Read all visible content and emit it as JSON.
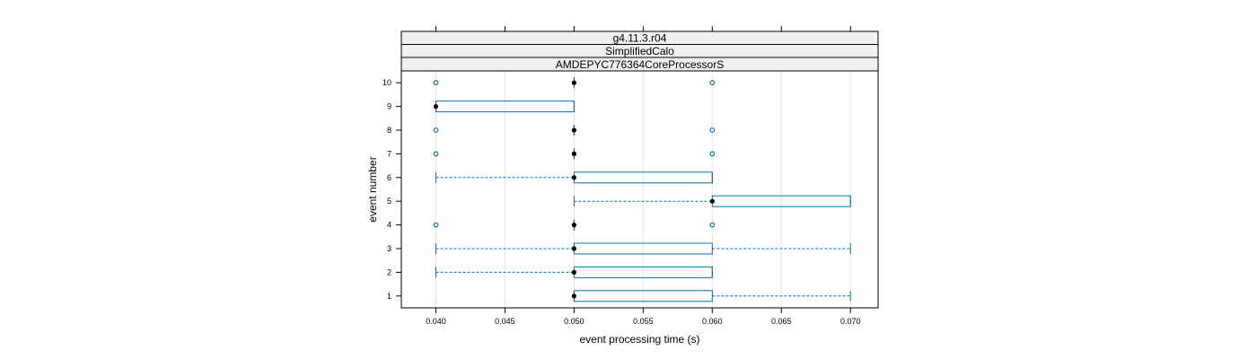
{
  "chart_data": {
    "type": "boxplot",
    "panel_strips": [
      "g4.11.3.r04",
      "SimplifiedCalo",
      "AMDEPYC776364CoreProcessorS"
    ],
    "xlabel": "event processing time (s)",
    "ylabel": "event number",
    "xlim": [
      0.0375,
      0.072
    ],
    "x_ticks": [
      0.04,
      0.045,
      0.05,
      0.055,
      0.06,
      0.065,
      0.07
    ],
    "x_tick_labels": [
      "0.040",
      "0.045",
      "0.050",
      "0.055",
      "0.060",
      "0.065",
      "0.070"
    ],
    "categories": [
      "1",
      "2",
      "3",
      "4",
      "5",
      "6",
      "7",
      "8",
      "9",
      "10"
    ],
    "grid": "vertical",
    "colors": {
      "box": "#0072B2",
      "median": "#000000",
      "strip_bg": "#f0f0f0",
      "panel_border": "#000000",
      "grid": "#e6e6e6"
    },
    "boxes": [
      {
        "event": "1",
        "whisker_low": 0.05,
        "q1": 0.05,
        "median": 0.05,
        "q3": 0.06,
        "whisker_high": 0.07,
        "outliers": []
      },
      {
        "event": "2",
        "whisker_low": 0.04,
        "q1": 0.05,
        "median": 0.05,
        "q3": 0.06,
        "whisker_high": 0.06,
        "outliers": []
      },
      {
        "event": "3",
        "whisker_low": 0.04,
        "q1": 0.05,
        "median": 0.05,
        "q3": 0.06,
        "whisker_high": 0.07,
        "outliers": []
      },
      {
        "event": "4",
        "whisker_low": 0.05,
        "q1": 0.05,
        "median": 0.05,
        "q3": 0.05,
        "whisker_high": 0.05,
        "outliers": [
          0.04,
          0.06
        ]
      },
      {
        "event": "5",
        "whisker_low": 0.05,
        "q1": 0.06,
        "median": 0.06,
        "q3": 0.07,
        "whisker_high": 0.07,
        "outliers": []
      },
      {
        "event": "6",
        "whisker_low": 0.04,
        "q1": 0.05,
        "median": 0.05,
        "q3": 0.06,
        "whisker_high": 0.06,
        "outliers": []
      },
      {
        "event": "7",
        "whisker_low": 0.05,
        "q1": 0.05,
        "median": 0.05,
        "q3": 0.05,
        "whisker_high": 0.05,
        "outliers": [
          0.04,
          0.06
        ]
      },
      {
        "event": "8",
        "whisker_low": 0.05,
        "q1": 0.05,
        "median": 0.05,
        "q3": 0.05,
        "whisker_high": 0.05,
        "outliers": [
          0.04,
          0.06
        ]
      },
      {
        "event": "9",
        "whisker_low": 0.04,
        "q1": 0.04,
        "median": 0.04,
        "q3": 0.05,
        "whisker_high": 0.05,
        "outliers": []
      },
      {
        "event": "10",
        "whisker_low": 0.05,
        "q1": 0.05,
        "median": 0.05,
        "q3": 0.05,
        "whisker_high": 0.05,
        "outliers": [
          0.04,
          0.06
        ]
      }
    ]
  }
}
